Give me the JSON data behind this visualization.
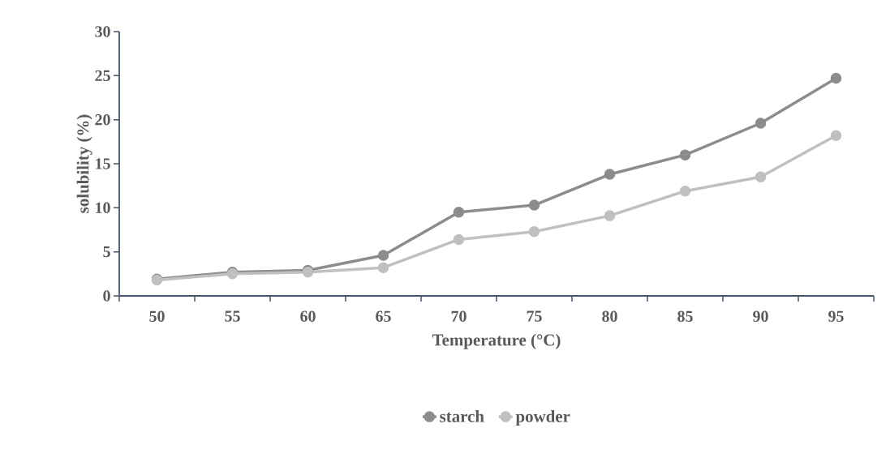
{
  "chart_data": {
    "type": "line",
    "xlabel": "Temperature (°C)",
    "ylabel": "solubility (%)",
    "categories": [
      "50",
      "55",
      "60",
      "65",
      "70",
      "75",
      "80",
      "85",
      "90",
      "95"
    ],
    "series": [
      {
        "name": "starch",
        "color": "#8c8c8c",
        "values": [
          1.9,
          2.7,
          2.9,
          4.6,
          9.5,
          10.3,
          13.8,
          16.0,
          19.6,
          24.7
        ]
      },
      {
        "name": "powder",
        "color": "#c0c0c0",
        "values": [
          1.8,
          2.5,
          2.7,
          3.2,
          6.4,
          7.3,
          9.1,
          11.9,
          13.5,
          18.2
        ]
      }
    ],
    "ylim": [
      0,
      30
    ],
    "yticks": [
      0,
      5,
      10,
      15,
      20,
      25,
      30
    ],
    "grid": false,
    "legend": "bottom",
    "marker": "circle",
    "line_style": "solid"
  }
}
